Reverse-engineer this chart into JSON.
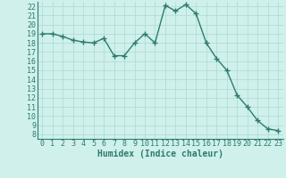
{
  "x": [
    0,
    1,
    2,
    3,
    4,
    5,
    6,
    7,
    8,
    9,
    10,
    11,
    12,
    13,
    14,
    15,
    16,
    17,
    18,
    19,
    20,
    21,
    22,
    23
  ],
  "y": [
    19.0,
    19.0,
    18.7,
    18.3,
    18.1,
    18.0,
    18.5,
    16.6,
    16.6,
    18.0,
    19.0,
    18.0,
    22.1,
    21.5,
    22.2,
    21.2,
    18.0,
    16.3,
    15.0,
    12.3,
    11.0,
    9.5,
    8.6,
    8.4
  ],
  "line_color": "#2e7b6e",
  "marker": "+",
  "markersize": 4,
  "linewidth": 1.0,
  "background_color": "#cff0eb",
  "grid_color": "#b0ddd7",
  "xlabel": "Humidex (Indice chaleur)",
  "xlim": [
    -0.5,
    23.5
  ],
  "ylim": [
    7.5,
    22.5
  ],
  "xtick_labels": [
    "0",
    "1",
    "2",
    "3",
    "4",
    "5",
    "6",
    "7",
    "8",
    "9",
    "10",
    "11",
    "12",
    "13",
    "14",
    "15",
    "16",
    "17",
    "18",
    "19",
    "20",
    "21",
    "22",
    "23"
  ],
  "ytick_values": [
    8,
    9,
    10,
    11,
    12,
    13,
    14,
    15,
    16,
    17,
    18,
    19,
    20,
    21,
    22
  ],
  "xlabel_fontsize": 7,
  "tick_fontsize": 6,
  "line_and_text_color": "#2e7b6e",
  "spine_color": "#2e7b6e"
}
